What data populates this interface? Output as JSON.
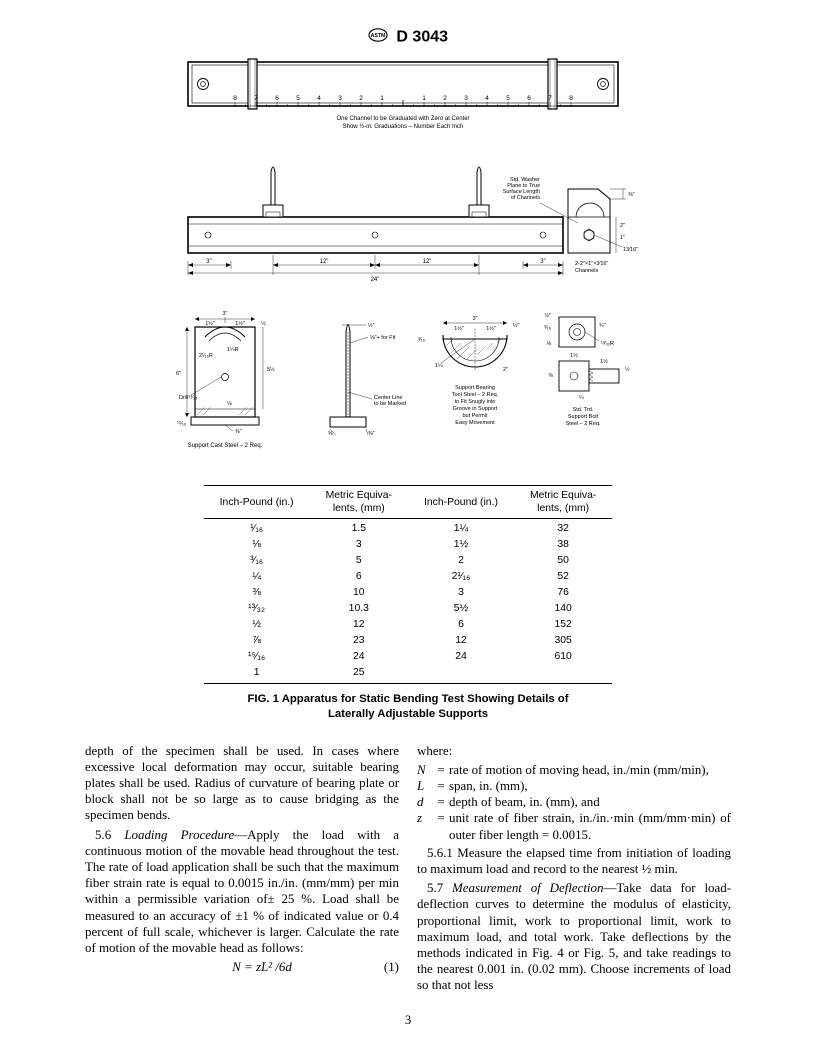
{
  "header": {
    "standard": "D 3043"
  },
  "figure": {
    "caption_line1": "FIG. 1 Apparatus for Static Bending Test Showing Details of",
    "caption_line2": "Laterally Adjustable Supports",
    "top_channel": {
      "ruler_labels_left": [
        "8",
        "7",
        "6",
        "5",
        "4",
        "3",
        "2",
        "1"
      ],
      "ruler_labels_right": [
        "1",
        "2",
        "3",
        "4",
        "5",
        "6",
        "7",
        "8"
      ],
      "note1": "One Channel to be Graduated with Zero at Center",
      "note2": "Show ½-in. Graduations – Number Each Inch"
    },
    "side_view": {
      "dim_3a": "3\"",
      "dim_12a": "12\"",
      "dim_12b": "12\"",
      "dim_3b": "3\"",
      "dim_24": "24\"",
      "label_washer1": "Std. Washer",
      "label_washer2": "Plane to True",
      "label_washer3": "Surface Length",
      "label_washer4": "of Channels",
      "dim_2": "2\"",
      "dim_1": "1\"",
      "dim_3_8": "⅜\"",
      "dim_13_16": "13⁄16\"",
      "channels": "2-2\"×1\"×3⁄16\"",
      "channels2": "Channels"
    },
    "detail_left": {
      "dim_3": "3\"",
      "dim_1_5a": "1½\"",
      "dim_1_5b": "1½\"",
      "dim_half": "½",
      "dim_6": "6\"",
      "r_2_1_16": "2¹⁄₁₆R",
      "r_1_1_4": "1¼R",
      "dim_5_5": "5½",
      "drill": "Drill¹³⁄₃₂",
      "dim_1_8": "⅛",
      "dim_15_16": "¹⁵⁄₁₆",
      "dim_3_8": "⅜\"",
      "label": "Support Cast Steel – 2 Req."
    },
    "detail_mid": {
      "dim_half": "½\"",
      "fit": "⅛\"+ for Fit",
      "center_line": "Center Line",
      "center_line2": "to be Marked",
      "dim_3_8a": "⅜",
      "dim_3_8b": "⅜\""
    },
    "detail_arc": {
      "dim_3": "3\"",
      "dim_1_5a": "1½\"",
      "dim_1_5b": "1½\"",
      "dim_half": "½\"",
      "dim_3_16": "³⁄₁₆",
      "dim_1_1_4": "1¼",
      "dim_2": "2\"",
      "label1": "Support Bearing",
      "label2": "Tool Steel – 2 Req.",
      "label3": "to Fit Snugly into",
      "label4": "Groove in Support",
      "label5": "but Permit",
      "label6": "Easy Movement"
    },
    "detail_bolt_top": {
      "dim_half": "½\"",
      "dim_3_16": "³⁄₁₆",
      "dim_3_4": "¾\"",
      "dim_1_8": "⅛",
      "r_13_32": "¹³⁄₃₂R"
    },
    "detail_bolt_bot": {
      "dim_1_5": "1½",
      "dim_1_5b": "1½",
      "dim_half": "½",
      "dim_3_8": "⅜",
      "dim_1_4": "¼",
      "label1": "Std. Trd.",
      "label2": "Support Bolt",
      "label3": "Steel – 2 Req."
    }
  },
  "table": {
    "type": "table",
    "columns": [
      "Inch-Pound (in.)",
      "Metric Equiva-\nlents, (mm)",
      "Inch-Pound (in.)",
      "Metric Equiva-\nlents, (mm)"
    ],
    "rows": [
      [
        "¹⁄₁₆",
        "1.5",
        "1¼",
        "32"
      ],
      [
        "⅛",
        "3",
        "1½",
        "38"
      ],
      [
        "³⁄₁₆",
        "5",
        "2",
        "50"
      ],
      [
        "¼",
        "6",
        "2¹⁄₁₆",
        "52"
      ],
      [
        "⅜",
        "10",
        "3",
        "76"
      ],
      [
        "¹³⁄₃₂",
        "10.3",
        "5½",
        "140"
      ],
      [
        "½",
        "12",
        "6",
        "152"
      ],
      [
        "⅞",
        "23",
        "12",
        "305"
      ],
      [
        "¹⁵⁄₁₆",
        "24",
        "24",
        "610"
      ],
      [
        "1",
        "25",
        "",
        ""
      ]
    ]
  },
  "text": {
    "p1": "depth of the specimen shall be used. In cases where excessive local deformation may occur, suitable bearing plates shall be used. Radius of curvature of bearing plate or block shall not be so large as to cause bridging as the specimen bends.",
    "p2_lead": "5.6 ",
    "p2_title": "Loading Procedure",
    "p2_body": "—Apply the load with a continuous motion of the movable head throughout the test. The rate of load application shall be such that the maximum fiber strain rate is equal to 0.0015 in./in. (mm/mm) per min within a permissible variation of± 25 %. Load shall be measured to an accuracy of ±1 % of indicated value or 0.4 percent of full scale, whichever is larger. Calculate the rate of motion of the movable head as follows:",
    "eqn": "N = zL² /6d",
    "eqn_num": "(1)",
    "where": "where:",
    "def_N": "rate of motion of moving head, in./min (mm/min),",
    "def_L": "span, in. (mm),",
    "def_d": "depth of beam, in. (mm), and",
    "def_z": "unit rate of fiber strain, in./in.·min (mm/mm·min) of outer fiber length = 0.0015.",
    "p3": "5.6.1 Measure the elapsed time from initiation of loading to maximum load and record to the nearest ½ min.",
    "p4_lead": "5.7 ",
    "p4_title": "Measurement of Deflection",
    "p4_body": "—Take data for load-deflection curves to determine the modulus of elasticity, proportional limit, work to proportional limit, work to maximum load, and total work. Take deflections by the methods indicated in Fig. 4 or Fig. 5, and take readings to the nearest 0.001 in. (0.02 mm). Choose increments of load so that not less"
  },
  "page_number": "3"
}
